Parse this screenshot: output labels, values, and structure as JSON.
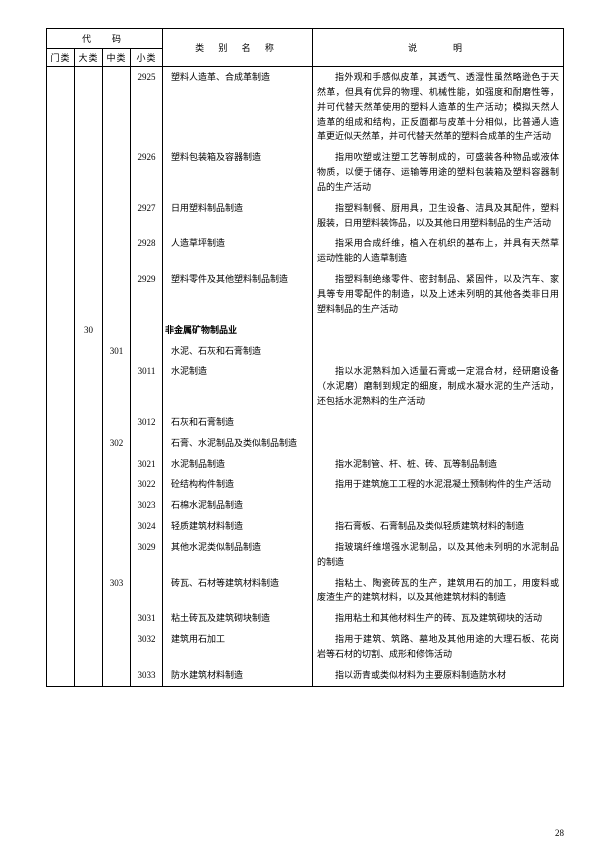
{
  "header": {
    "code": "代　码",
    "name": "类 别 名 称",
    "desc": "说　　明",
    "sub": {
      "menlei": "门类",
      "dalei": "大类",
      "zhonglei": "中类",
      "xiaolei": "小类"
    }
  },
  "pagenum": "28",
  "rows": [
    {
      "c1": "",
      "c2": "",
      "c3": "",
      "c4": "2925",
      "name": "塑料人造革、合成革制造",
      "desc": "指外观和手感似皮革，其透气、透湿性虽然略逊色于天然革，但具有优异的物理、机械性能，如强度和耐磨性等，并可代替天然革使用的塑料人造革的生产活动；模拟天然人造革的组成和结构，正反面都与皮革十分相似，比普通人造革更近似天然革，并可代替天然革的塑料合成革的生产活动",
      "indent": true
    },
    {
      "c1": "",
      "c2": "",
      "c3": "",
      "c4": "2926",
      "name": "塑料包装箱及容器制造",
      "desc": "指用吹塑或注塑工艺等制成的，可盛装各种物品或液体物质，以便于储存、运输等用途的塑料包装箱及塑料容器制品的生产活动",
      "indent": true
    },
    {
      "c1": "",
      "c2": "",
      "c3": "",
      "c4": "2927",
      "name": "日用塑料制品制造",
      "desc": "指塑料制餐、厨用具，卫生设备、洁具及其配件，塑料服装，日用塑料装饰品，以及其他日用塑料制品的生产活动",
      "indent": true
    },
    {
      "c1": "",
      "c2": "",
      "c3": "",
      "c4": "2928",
      "name": "人造草坪制造",
      "desc": "指采用合成纤维，植入在机织的基布上，并具有天然草运动性能的人造草制造",
      "indent": true
    },
    {
      "c1": "",
      "c2": "",
      "c3": "",
      "c4": "2929",
      "name": "塑料零件及其他塑料制品制造",
      "desc": "指塑料制绝缘零件、密封制品、紧固件，以及汽车、家具等专用零配件的制造，以及上述未列明的其他各类非日用塑料制品的生产活动",
      "indent": true
    },
    {
      "c1": "",
      "c2": "30",
      "c3": "",
      "c4": "",
      "name": "非金属矿物制品业",
      "desc": "",
      "bold": true,
      "nameNoIndent": true
    },
    {
      "c1": "",
      "c2": "",
      "c3": "301",
      "c4": "",
      "name": "水泥、石灰和石膏制造",
      "desc": ""
    },
    {
      "c1": "",
      "c2": "",
      "c3": "",
      "c4": "3011",
      "name": "水泥制造",
      "desc": "指以水泥熟料加入适量石膏或一定混合材，经研磨设备（水泥磨）磨制到规定的细度，制成水凝水泥的生产活动，还包括水泥熟料的生产活动",
      "indent": true
    },
    {
      "c1": "",
      "c2": "",
      "c3": "",
      "c4": "3012",
      "name": "石灰和石膏制造",
      "desc": ""
    },
    {
      "c1": "",
      "c2": "",
      "c3": "302",
      "c4": "",
      "name": "石膏、水泥制品及类似制品制造",
      "desc": ""
    },
    {
      "c1": "",
      "c2": "",
      "c3": "",
      "c4": "3021",
      "name": "水泥制品制造",
      "desc": "指水泥制管、杆、桩、砖、瓦等制品制造",
      "indent": true
    },
    {
      "c1": "",
      "c2": "",
      "c3": "",
      "c4": "3022",
      "name": "砼结构构件制造",
      "desc": "指用于建筑施工工程的水泥混凝土预制构件的生产活动",
      "indent": true
    },
    {
      "c1": "",
      "c2": "",
      "c3": "",
      "c4": "3023",
      "name": "石棉水泥制品制造",
      "desc": ""
    },
    {
      "c1": "",
      "c2": "",
      "c3": "",
      "c4": "3024",
      "name": "轻质建筑材料制造",
      "desc": "指石膏板、石膏制品及类似轻质建筑材料的制造",
      "indent": true
    },
    {
      "c1": "",
      "c2": "",
      "c3": "",
      "c4": "3029",
      "name": "其他水泥类似制品制造",
      "desc": "指玻璃纤维增强水泥制品，以及其他未列明的水泥制品的制造",
      "indent": true
    },
    {
      "c1": "",
      "c2": "",
      "c3": "303",
      "c4": "",
      "name": "砖瓦、石材等建筑材料制造",
      "desc": "指粘土、陶瓷砖瓦的生产，建筑用石的加工，用废料或废渣生产的建筑材料，以及其他建筑材料的制造",
      "indent": true
    },
    {
      "c1": "",
      "c2": "",
      "c3": "",
      "c4": "3031",
      "name": "粘土砖瓦及建筑砌块制造",
      "desc": "指用粘土和其他材料生产的砖、瓦及建筑砌块的活动",
      "indent": true
    },
    {
      "c1": "",
      "c2": "",
      "c3": "",
      "c4": "3032",
      "name": "建筑用石加工",
      "desc": "指用于建筑、筑路、墓地及其他用途的大理石板、花岗岩等石材的切割、成形和修饰活动",
      "indent": true
    },
    {
      "c1": "",
      "c2": "",
      "c3": "",
      "c4": "3033",
      "name": "防水建筑材料制造",
      "desc": "指以沥青或类似材料为主要原料制造防水材",
      "indent": true,
      "last": true
    }
  ]
}
